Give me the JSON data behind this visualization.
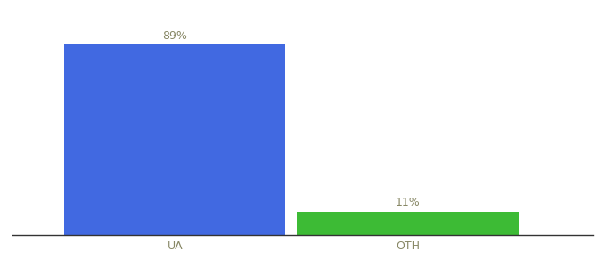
{
  "categories": [
    "UA",
    "OTH"
  ],
  "values": [
    89,
    11
  ],
  "bar_colors": [
    "#4169e1",
    "#3dbb35"
  ],
  "label_texts": [
    "89%",
    "11%"
  ],
  "label_color": "#888866",
  "tick_fontsize": 9,
  "label_fontsize": 9,
  "background_color": "#ffffff",
  "ylim": [
    0,
    100
  ],
  "bar_width": 0.38,
  "x_positions": [
    0.28,
    0.68
  ],
  "xlim": [
    0.0,
    1.0
  ],
  "tick_color": "#888866"
}
